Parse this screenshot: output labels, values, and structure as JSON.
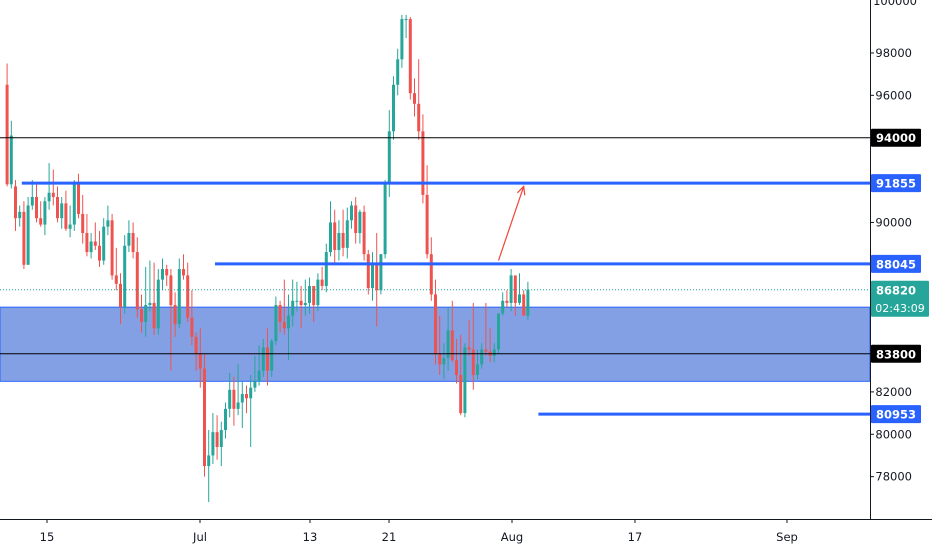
{
  "chart_data": {
    "type": "candlestick",
    "title": "",
    "xlabel": "",
    "ylabel": "",
    "ylim": [
      76000,
      100500
    ],
    "y_ticks": [
      78000,
      80000,
      82000,
      84000,
      86000,
      88000,
      90000,
      92000,
      94000,
      96000,
      98000
    ],
    "y_top_partial_label": "100000",
    "x_ticks": [
      "15",
      "Jul",
      "13",
      "21",
      "Aug",
      "17",
      "Sep"
    ],
    "grid": false,
    "colors": {
      "up": "#26a69a",
      "down": "#ef5350",
      "level": "#2962ff",
      "zone": "#6d8fdf",
      "axis_text": "#131722",
      "black_tag": "#000000",
      "price_tag": "#26a69a"
    },
    "horizontal_lines": [
      {
        "name": "level-94000",
        "value": 94000,
        "color": "#000000",
        "label": "94000"
      },
      {
        "name": "level-83800",
        "value": 83800,
        "color": "#000000",
        "label": "83800"
      },
      {
        "name": "level-91855",
        "value": 91855,
        "color": "#2962ff",
        "label": "91855"
      },
      {
        "name": "level-88045",
        "value": 88045,
        "color": "#2962ff",
        "label": "88045"
      },
      {
        "name": "level-80953",
        "value": 80953,
        "color": "#2962ff",
        "label": "80953"
      }
    ],
    "zone": {
      "low": 82500,
      "high": 86000
    },
    "current_price": {
      "value": 86820,
      "label": "86820",
      "countdown": "02:43:09"
    },
    "candles": [
      [
        96500,
        97500,
        91700,
        91800
      ],
      [
        91800,
        94800,
        91600,
        94100
      ],
      [
        91700,
        92000,
        89600,
        90200
      ],
      [
        90200,
        90800,
        89800,
        90500
      ],
      [
        90500,
        91000,
        87800,
        88000
      ],
      [
        88000,
        91200,
        88000,
        90800
      ],
      [
        90800,
        92000,
        90600,
        91200
      ],
      [
        91200,
        91800,
        90000,
        90200
      ],
      [
        90200,
        91000,
        89800,
        89900
      ],
      [
        89900,
        91200,
        89400,
        91000
      ],
      [
        91000,
        92800,
        90600,
        91400
      ],
      [
        91400,
        92500,
        90800,
        91200
      ],
      [
        91200,
        91700,
        90000,
        90200
      ],
      [
        90200,
        91200,
        89700,
        90900
      ],
      [
        90900,
        91500,
        89600,
        89700
      ],
      [
        89700,
        90800,
        89300,
        89900
      ],
      [
        89900,
        92000,
        89600,
        91800
      ],
      [
        91800,
        92300,
        90200,
        90400
      ],
      [
        90400,
        91300,
        89000,
        89500
      ],
      [
        89500,
        90400,
        88400,
        88600
      ],
      [
        88600,
        89500,
        88300,
        89100
      ],
      [
        89100,
        90000,
        88700,
        88900
      ],
      [
        88900,
        89600,
        87900,
        88200
      ],
      [
        88200,
        90200,
        88000,
        89800
      ],
      [
        89800,
        90800,
        89400,
        90100
      ],
      [
        90100,
        90400,
        87300,
        87500
      ],
      [
        87500,
        88800,
        86800,
        87100
      ],
      [
        87100,
        87600,
        85200,
        86000
      ],
      [
        86000,
        89400,
        85700,
        88900
      ],
      [
        88900,
        90100,
        88600,
        89500
      ],
      [
        89500,
        90000,
        88300,
        88600
      ],
      [
        88600,
        89300,
        85500,
        85900
      ],
      [
        85900,
        86600,
        84800,
        85300
      ],
      [
        85300,
        87900,
        84600,
        86100
      ],
      [
        86100,
        88200,
        85800,
        86200
      ],
      [
        86200,
        88100,
        84700,
        85000
      ],
      [
        85000,
        87800,
        84700,
        87300
      ],
      [
        87300,
        88300,
        86800,
        87800
      ],
      [
        87800,
        88000,
        87000,
        87500
      ],
      [
        87500,
        87800,
        83000,
        86100
      ],
      [
        86100,
        86700,
        84600,
        85200
      ],
      [
        85200,
        88300,
        85000,
        87800
      ],
      [
        87800,
        88500,
        87300,
        87500
      ],
      [
        87500,
        88100,
        85300,
        85500
      ],
      [
        85500,
        86800,
        84200,
        84600
      ],
      [
        84600,
        84800,
        83000,
        83800
      ],
      [
        83800,
        85000,
        82200,
        83100
      ],
      [
        83100,
        83800,
        78000,
        78500
      ],
      [
        78500,
        80200,
        76800,
        79000
      ],
      [
        79000,
        81000,
        78600,
        80100
      ],
      [
        80100,
        80900,
        78800,
        79400
      ],
      [
        79400,
        80600,
        78500,
        80200
      ],
      [
        80200,
        81500,
        79800,
        81200
      ],
      [
        81200,
        82900,
        80800,
        82100
      ],
      [
        82100,
        82700,
        80400,
        81200
      ],
      [
        81200,
        83300,
        80900,
        81500
      ],
      [
        81500,
        82500,
        80300,
        81900
      ],
      [
        81900,
        82300,
        81000,
        81700
      ],
      [
        81700,
        82800,
        79400,
        82200
      ],
      [
        82200,
        83700,
        82000,
        82500
      ],
      [
        82500,
        84200,
        82300,
        83000
      ],
      [
        83000,
        84500,
        82700,
        84100
      ],
      [
        84100,
        85000,
        82300,
        83000
      ],
      [
        83000,
        84500,
        82700,
        84400
      ],
      [
        84400,
        86500,
        84200,
        86100
      ],
      [
        86100,
        86300,
        84800,
        85300
      ],
      [
        85300,
        87300,
        84700,
        85000
      ],
      [
        85000,
        86600,
        83500,
        85600
      ],
      [
        85600,
        87300,
        85100,
        86300
      ],
      [
        86300,
        87200,
        85800,
        86300
      ],
      [
        86300,
        87000,
        85000,
        86100
      ],
      [
        86100,
        87300,
        85600,
        86200
      ],
      [
        86200,
        87400,
        85700,
        87000
      ],
      [
        87000,
        86900,
        85300,
        86100
      ],
      [
        86100,
        87600,
        85800,
        87300
      ],
      [
        87300,
        87900,
        86800,
        87000
      ],
      [
        87000,
        89000,
        86700,
        88600
      ],
      [
        88600,
        91000,
        88400,
        90000
      ],
      [
        90000,
        90600,
        88000,
        88700
      ],
      [
        88700,
        90100,
        88200,
        89500
      ],
      [
        89500,
        90600,
        88400,
        88800
      ],
      [
        88800,
        90700,
        88300,
        90100
      ],
      [
        90100,
        91000,
        89700,
        90800
      ],
      [
        90800,
        91200,
        89000,
        89500
      ],
      [
        89500,
        90600,
        89000,
        90500
      ],
      [
        90500,
        90800,
        88200,
        88500
      ],
      [
        88500,
        88700,
        86600,
        86900
      ],
      [
        86900,
        88600,
        86300,
        88100
      ],
      [
        88100,
        89500,
        85100,
        86800
      ],
      [
        86800,
        88500,
        86600,
        88500
      ],
      [
        88500,
        92000,
        88300,
        91800
      ],
      [
        91800,
        95300,
        91200,
        94300
      ],
      [
        94300,
        96900,
        93900,
        96500
      ],
      [
        96500,
        98200,
        96000,
        97700
      ],
      [
        97700,
        99800,
        97300,
        99600
      ],
      [
        99600,
        99800,
        98700,
        99600
      ],
      [
        99600,
        99700,
        95800,
        96100
      ],
      [
        96100,
        96800,
        95000,
        95600
      ],
      [
        95600,
        97700,
        93900,
        94300
      ],
      [
        94300,
        95100,
        90900,
        91300
      ],
      [
        91300,
        92700,
        88300,
        88500
      ],
      [
        88500,
        89300,
        86300,
        86600
      ],
      [
        86600,
        87300,
        83300,
        83800
      ],
      [
        83800,
        85600,
        82800,
        83300
      ],
      [
        83300,
        84300,
        82600,
        83600
      ],
      [
        83600,
        86000,
        83000,
        84900
      ],
      [
        84900,
        86300,
        83400,
        83500
      ],
      [
        83500,
        84500,
        82400,
        82800
      ],
      [
        82800,
        84700,
        80900,
        81000
      ],
      [
        81000,
        84300,
        80800,
        84100
      ],
      [
        84100,
        85400,
        83700,
        84000
      ],
      [
        84000,
        86200,
        82100,
        82800
      ],
      [
        82800,
        84000,
        82600,
        83300
      ],
      [
        83300,
        84300,
        83100,
        84000
      ],
      [
        84000,
        86200,
        83700,
        83900
      ],
      [
        83900,
        85000,
        83400,
        83700
      ],
      [
        83700,
        84300,
        83400,
        84000
      ],
      [
        84000,
        85600,
        83800,
        85700
      ],
      [
        85700,
        86700,
        85600,
        86300
      ],
      [
        86300,
        86800,
        86000,
        86200
      ],
      [
        86200,
        87800,
        85800,
        87500
      ],
      [
        87500,
        87400,
        85600,
        86200
      ],
      [
        86200,
        87600,
        86100,
        86600
      ],
      [
        86600,
        86800,
        85600,
        85600
      ],
      [
        85600,
        87200,
        85400,
        86820
      ]
    ],
    "annotations": [
      {
        "type": "arrow",
        "from": [
          117,
          88200
        ],
        "to": [
          123,
          91700
        ],
        "color": "#f44336"
      }
    ]
  }
}
